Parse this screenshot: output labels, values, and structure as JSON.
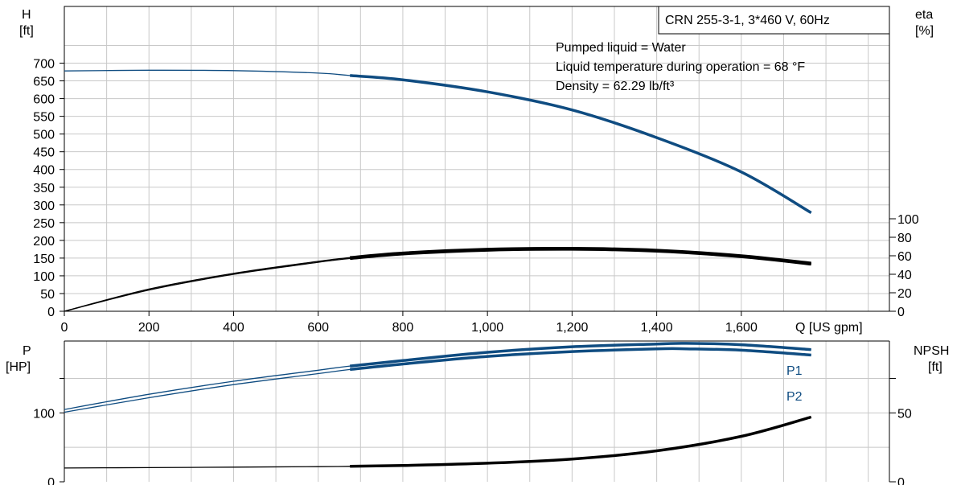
{
  "chart_data": [
    {
      "type": "line",
      "panel": "head-efficiency",
      "title": "CRN 255-3-1, 3*460 V, 60Hz",
      "annotations": [
        "Pumped liquid = Water",
        "Liquid temperature during operation = 68 °F",
        "Density = 62.29 lb/ft³"
      ],
      "ylabel_left": [
        "H",
        "[ft]"
      ],
      "ylabel_right": [
        "eta",
        "[%]"
      ],
      "xlabel": "Q [US gpm]",
      "x_ticks": [
        "0",
        "200",
        "400",
        "600",
        "800",
        "1,000",
        "1,200",
        "1,400",
        "1,600"
      ],
      "y_left_ticks": [
        "0",
        "50",
        "100",
        "150",
        "200",
        "250",
        "300",
        "350",
        "400",
        "450",
        "500",
        "550",
        "600",
        "650",
        "700"
      ],
      "y_right_ticks": [
        "0",
        "20",
        "40",
        "60",
        "80",
        "100"
      ],
      "xlim": [
        0,
        1950
      ],
      "ylim_left": [
        0,
        860
      ],
      "ylim_right": [
        0,
        100
      ],
      "grid": true,
      "series": [
        {
          "color": "#0f4c81",
          "axis": "left",
          "x": [
            0,
            200,
            400,
            600,
            675,
            800,
            1000,
            1200,
            1400,
            1600,
            1765
          ],
          "y": [
            678,
            680,
            679,
            672,
            665,
            653,
            619,
            568,
            490,
            393,
            278
          ],
          "operating_range": [
            675,
            1765
          ]
        },
        {
          "color": "#000000",
          "axis": "right",
          "x": [
            0,
            200,
            400,
            600,
            675,
            800,
            1000,
            1200,
            1400,
            1600,
            1765
          ],
          "y": [
            0,
            24,
            41,
            54,
            58,
            63,
            67,
            68,
            66,
            60,
            52
          ],
          "operating_range": [
            675,
            1765
          ]
        },
        {
          "color": "#000000",
          "axis": "right",
          "x": [
            0,
            200,
            400,
            600,
            675,
            800,
            1000,
            1200,
            1400,
            1600,
            1765
          ],
          "y": [
            0,
            23,
            40,
            53,
            57,
            62,
            66,
            67,
            65,
            59,
            51
          ],
          "operating_range": [
            675,
            1765
          ]
        }
      ]
    },
    {
      "type": "line",
      "panel": "power-npsh",
      "ylabel_left": [
        "P",
        "[HP]"
      ],
      "ylabel_right": [
        "NPSH",
        "[ft]"
      ],
      "y_left_ticks": [
        "0",
        "100"
      ],
      "y_right_ticks": [
        "0",
        "50"
      ],
      "ylim_left": [
        0,
        195
      ],
      "ylim_right": [
        0,
        97.5
      ],
      "series": [
        {
          "name": "P1",
          "color": "#0f4c81",
          "axis": "left",
          "x": [
            0,
            200,
            400,
            600,
            675,
            800,
            1000,
            1200,
            1400,
            1470,
            1600,
            1765
          ],
          "y": [
            105,
            127,
            146,
            162,
            168,
            176,
            188,
            196,
            200,
            201,
            199,
            192
          ],
          "operating_range": [
            675,
            1765
          ]
        },
        {
          "name": "P2",
          "color": "#0f4c81",
          "axis": "left",
          "x": [
            0,
            200,
            400,
            600,
            675,
            800,
            1000,
            1200,
            1400,
            1470,
            1600,
            1765
          ],
          "y": [
            101,
            122,
            141,
            157,
            163,
            171,
            182,
            189,
            193,
            193,
            191,
            184
          ],
          "operating_range": [
            675,
            1765
          ]
        },
        {
          "color": "#000000",
          "axis": "right",
          "x": [
            0,
            200,
            400,
            600,
            675,
            800,
            1000,
            1200,
            1400,
            1600,
            1765
          ],
          "y": [
            10,
            10.3,
            10.6,
            11,
            11.2,
            11.8,
            13.5,
            16.5,
            22.5,
            33,
            47
          ],
          "operating_range": [
            675,
            1765
          ]
        }
      ]
    }
  ]
}
